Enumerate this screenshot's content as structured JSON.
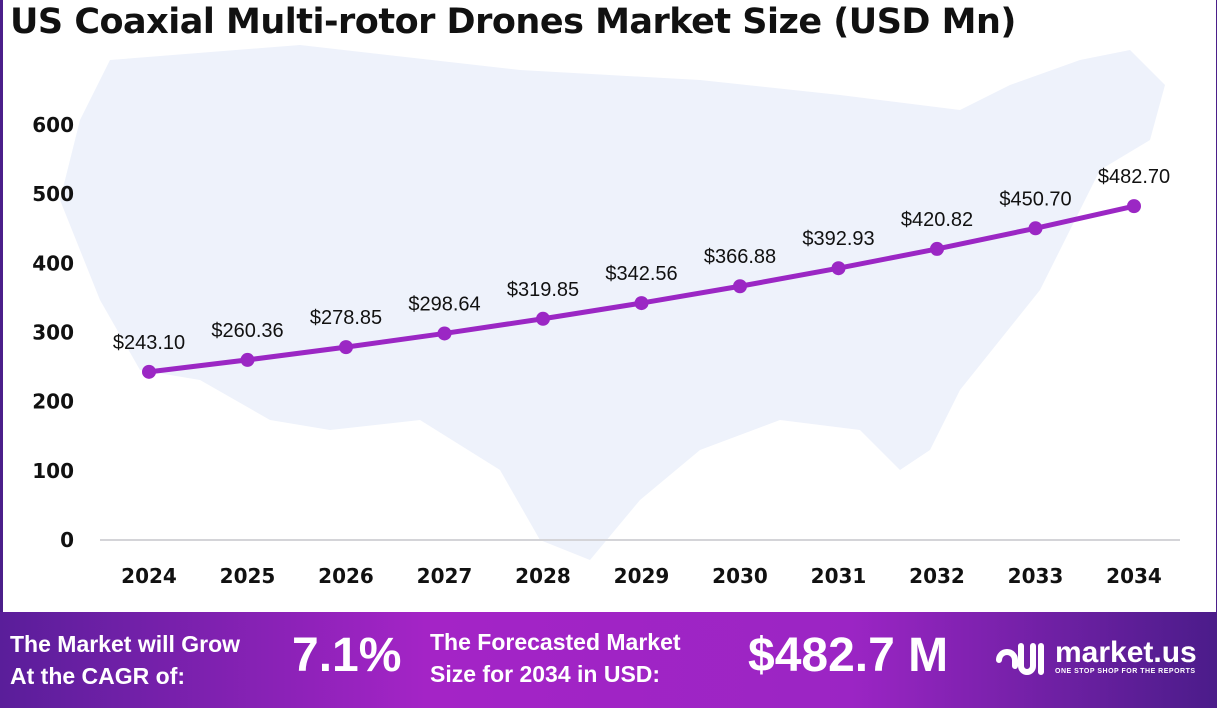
{
  "chart_data": {
    "type": "line",
    "title": "US Coaxial Multi-rotor Drones Market Size (USD Mn)",
    "categories": [
      "2024",
      "2025",
      "2026",
      "2027",
      "2028",
      "2029",
      "2030",
      "2031",
      "2032",
      "2033",
      "2034"
    ],
    "values": [
      243.1,
      260.36,
      278.85,
      298.64,
      319.85,
      342.56,
      366.88,
      392.93,
      420.82,
      450.7,
      482.7
    ],
    "data_labels": [
      "$243.10",
      "$260.36",
      "$278.85",
      "$298.64",
      "$319.85",
      "$342.56",
      "$366.88",
      "$392.93",
      "$420.82",
      "$450.70",
      "$482.70"
    ],
    "yticks": [
      "0",
      "100",
      "200",
      "300",
      "400",
      "500",
      "600"
    ],
    "ylim": [
      0,
      600
    ],
    "grid": false,
    "line_color": "#9b27c4"
  },
  "banner": {
    "cagr_label_1": "The Market will Grow",
    "cagr_label_2": "At the CAGR of:",
    "cagr_value": "7.1%",
    "forecast_label_1": "The Forecasted Market",
    "forecast_label_2": "Size for 2034 in USD:",
    "forecast_value": "$482.7 M",
    "logo_name": "market.us",
    "logo_tagline": "ONE STOP SHOP FOR THE REPORTS"
  }
}
